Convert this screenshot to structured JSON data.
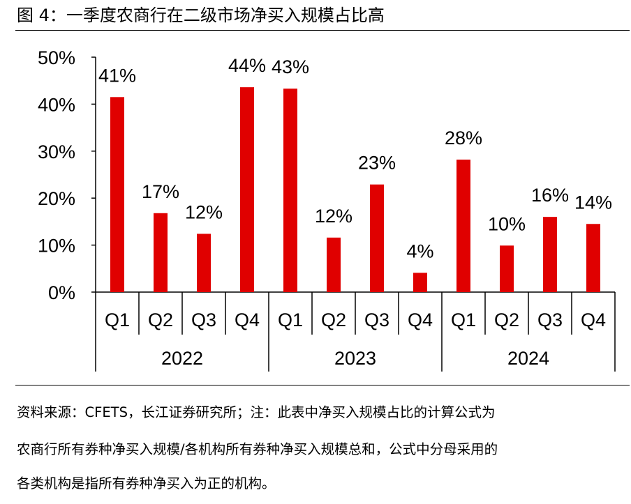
{
  "title": "图 4：一季度农商行在二级市场净买入规模占比高",
  "source_lines": [
    "资料来源：CFETS，长江证券研究所；注：此表中净买入规模占比的计算公式为",
    "农商行所有券种净买入规模/各机构所有券种净买入规模总和，公式中分母采用的",
    "各类机构是指所有券种净买入为正的机构。"
  ],
  "colors": {
    "bar": "#e00000",
    "axis": "#000000"
  },
  "chart_data": {
    "type": "bar",
    "title": "",
    "xlabel": "",
    "ylabel": "",
    "ylim": [
      0,
      50
    ],
    "yticks": [
      "0%",
      "10%",
      "20%",
      "30%",
      "40%",
      "50%"
    ],
    "grid": false,
    "legend": "none",
    "groups": [
      "2022",
      "2023",
      "2024"
    ],
    "categories": [
      "Q1",
      "Q2",
      "Q3",
      "Q4",
      "Q1",
      "Q2",
      "Q3",
      "Q4",
      "Q1",
      "Q2",
      "Q3",
      "Q4"
    ],
    "values": [
      41.5,
      16.8,
      12.4,
      43.6,
      43.3,
      11.6,
      22.9,
      4.1,
      28.2,
      9.9,
      16.0,
      14.5
    ],
    "data_labels": [
      "41%",
      "17%",
      "12%",
      "44%",
      "43%",
      "12%",
      "23%",
      "4%",
      "28%",
      "10%",
      "16%",
      "14%"
    ]
  }
}
